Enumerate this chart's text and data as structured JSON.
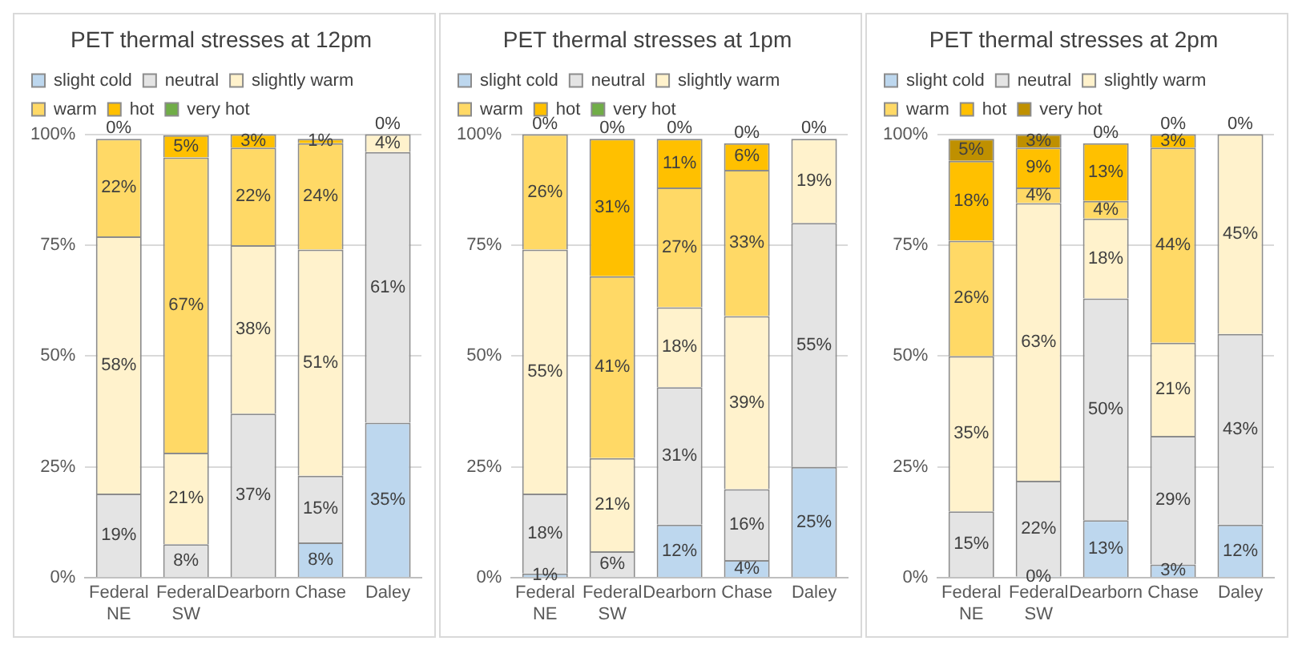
{
  "chart_data": [
    {
      "type": "bar",
      "title": "PET thermal stresses at 12pm",
      "stacked": true,
      "legend": "top",
      "grid": "y",
      "categories": [
        "Federal NE",
        "Federal SW",
        "Dearborn",
        "Chase",
        "Daley"
      ],
      "ylim": [
        0,
        100
      ],
      "yticks": [
        {
          "value": 0,
          "label": "0%"
        },
        {
          "value": 25,
          "label": "25%"
        },
        {
          "value": 50,
          "label": "50%"
        },
        {
          "value": 75,
          "label": "75%"
        },
        {
          "value": 100,
          "label": "100%"
        }
      ],
      "series": [
        {
          "name": "slight cold",
          "color": "#bdd7ee",
          "values": [
            0,
            0,
            0,
            8,
            35
          ],
          "value_labels": [
            null,
            null,
            null,
            "8%",
            "35%"
          ]
        },
        {
          "name": "neutral",
          "color": "#e4e4e4",
          "values": [
            19,
            7.6,
            37,
            15,
            61
          ],
          "value_labels": [
            "19%",
            "8%",
            "37%",
            "15%",
            "61%"
          ]
        },
        {
          "name": "slightly warm",
          "color": "#fff2cc",
          "values": [
            58,
            20.6,
            38,
            51,
            4
          ],
          "value_labels": [
            "58%",
            "21%",
            "38%",
            "51%",
            "4%"
          ]
        },
        {
          "name": "warm",
          "color": "#ffd966",
          "values": [
            22,
            66.6,
            22,
            24,
            0
          ],
          "value_labels": [
            "22%",
            "67%",
            "22%",
            "24%",
            "0%"
          ]
        },
        {
          "name": "hot",
          "color": "#ffc000",
          "values": [
            0,
            5,
            3,
            1,
            0
          ],
          "value_labels": [
            null,
            "5%",
            "3%",
            "1%",
            null
          ]
        },
        {
          "name": "very hot",
          "color": "#70ad47",
          "values": [
            0,
            0,
            0,
            0,
            0
          ],
          "value_labels": [
            "0%",
            null,
            null,
            null,
            null
          ]
        }
      ]
    },
    {
      "type": "bar",
      "title": "PET thermal stresses at 1pm",
      "stacked": true,
      "legend": "top",
      "grid": "y",
      "categories": [
        "Federal NE",
        "Federal SW",
        "Dearborn",
        "Chase",
        "Daley"
      ],
      "ylim": [
        0,
        100
      ],
      "yticks": [
        {
          "value": 0,
          "label": "0%"
        },
        {
          "value": 25,
          "label": "25%"
        },
        {
          "value": 50,
          "label": "50%"
        },
        {
          "value": 75,
          "label": "75%"
        },
        {
          "value": 100,
          "label": "100%"
        }
      ],
      "series": [
        {
          "name": "slight cold",
          "color": "#bdd7ee",
          "values": [
            1,
            0,
            12,
            4,
            25
          ],
          "value_labels": [
            "1%",
            null,
            "12%",
            "4%",
            "25%"
          ]
        },
        {
          "name": "neutral",
          "color": "#e4e4e4",
          "values": [
            18,
            6,
            31,
            16,
            55
          ],
          "value_labels": [
            "18%",
            "6%",
            "31%",
            "16%",
            "55%"
          ]
        },
        {
          "name": "slightly warm",
          "color": "#fff2cc",
          "values": [
            55,
            21,
            18,
            39,
            19
          ],
          "value_labels": [
            "55%",
            "21%",
            "18%",
            "39%",
            "19%"
          ]
        },
        {
          "name": "warm",
          "color": "#ffd966",
          "values": [
            26,
            41,
            27,
            33,
            0
          ],
          "value_labels": [
            "26%",
            "41%",
            "27%",
            "33%",
            null
          ]
        },
        {
          "name": "hot",
          "color": "#ffc000",
          "values": [
            0,
            31,
            11,
            6,
            0
          ],
          "value_labels": [
            null,
            "31%",
            "11%",
            "6%",
            null
          ]
        },
        {
          "name": "very hot",
          "color": "#70ad47",
          "values": [
            0,
            0,
            0,
            0,
            0
          ],
          "value_labels": [
            "0%",
            "0%",
            "0%",
            "0%",
            "0%"
          ]
        }
      ]
    },
    {
      "type": "bar",
      "title": "PET thermal stresses at 2pm",
      "stacked": true,
      "legend": "top",
      "grid": "y",
      "categories": [
        "Federal NE",
        "Federal SW",
        "Dearborn",
        "Chase",
        "Daley"
      ],
      "ylim": [
        0,
        100
      ],
      "yticks": [
        {
          "value": 0,
          "label": "0%"
        },
        {
          "value": 25,
          "label": "25%"
        },
        {
          "value": 50,
          "label": "50%"
        },
        {
          "value": 75,
          "label": "75%"
        },
        {
          "value": 100,
          "label": "100%"
        }
      ],
      "series": [
        {
          "name": "slight cold",
          "color": "#bdd7ee",
          "values": [
            0,
            0.3,
            13,
            3,
            12
          ],
          "value_labels": [
            null,
            "0%",
            "13%",
            "3%",
            "12%"
          ]
        },
        {
          "name": "neutral",
          "color": "#e4e4e4",
          "values": [
            15,
            21.6,
            50,
            29,
            43
          ],
          "value_labels": [
            "15%",
            "22%",
            "50%",
            "29%",
            "43%"
          ]
        },
        {
          "name": "slightly warm",
          "color": "#fff2cc",
          "values": [
            35,
            62.6,
            18,
            21,
            45
          ],
          "value_labels": [
            "35%",
            "63%",
            "18%",
            "21%",
            "45%"
          ]
        },
        {
          "name": "warm",
          "color": "#ffd966",
          "values": [
            26,
            3.5,
            4,
            44,
            0
          ],
          "value_labels": [
            "26%",
            "4%",
            "4%",
            "44%",
            null
          ]
        },
        {
          "name": "hot",
          "color": "#ffc000",
          "values": [
            18,
            9,
            13,
            3,
            0
          ],
          "value_labels": [
            "18%",
            "9%",
            "13%",
            "3%",
            null
          ]
        },
        {
          "name": "very hot",
          "color": "#bf9000",
          "values": [
            5,
            3,
            0,
            0,
            0
          ],
          "value_labels": [
            "5%",
            "3%",
            "0%",
            "0%",
            "0%"
          ]
        }
      ]
    }
  ]
}
